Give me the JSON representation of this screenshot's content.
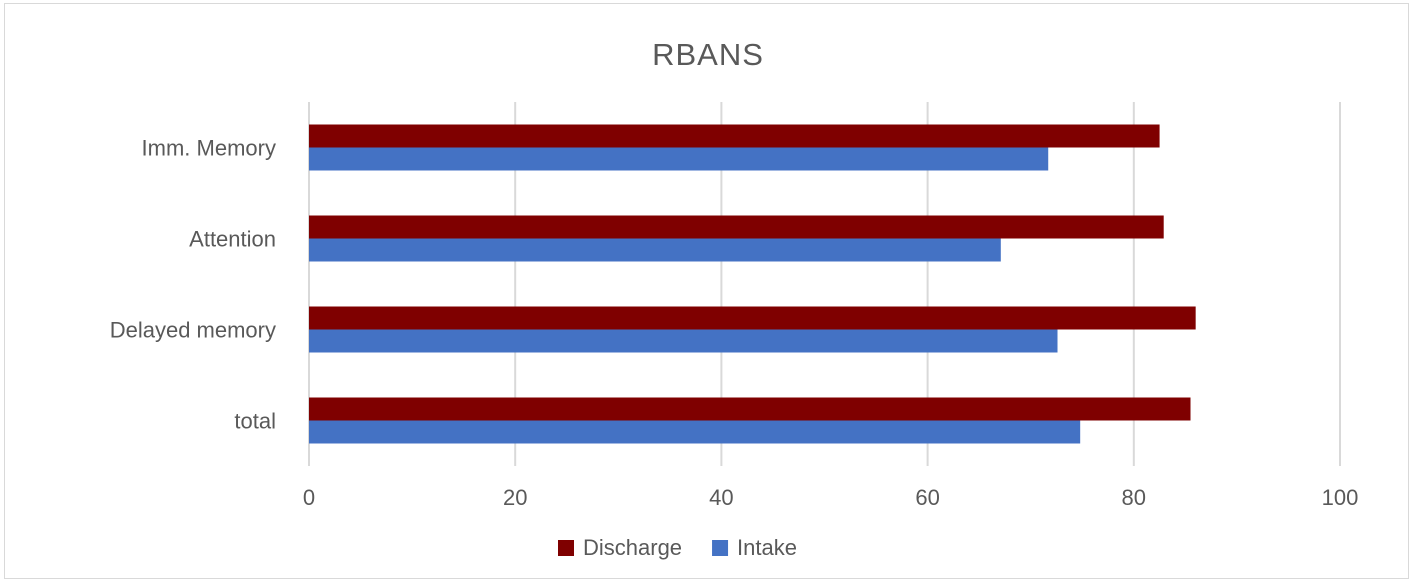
{
  "chart_data": {
    "type": "bar",
    "orientation": "horizontal",
    "title": "RBANS",
    "categories": [
      "Imm. Memory",
      "Attention",
      "Delayed memory",
      "total"
    ],
    "series": [
      {
        "name": "Discharge",
        "color": "#7f0000",
        "values": [
          82.5,
          82.9,
          86.0,
          85.5
        ]
      },
      {
        "name": "Intake",
        "color": "#4472c4",
        "values": [
          71.7,
          67.1,
          72.6,
          74.8
        ]
      }
    ],
    "xlim": [
      0,
      100
    ],
    "xticks": [
      0,
      20,
      40,
      60,
      80,
      100
    ],
    "xlabel": "",
    "ylabel": "",
    "grid": "vertical",
    "legend": "bottom"
  }
}
